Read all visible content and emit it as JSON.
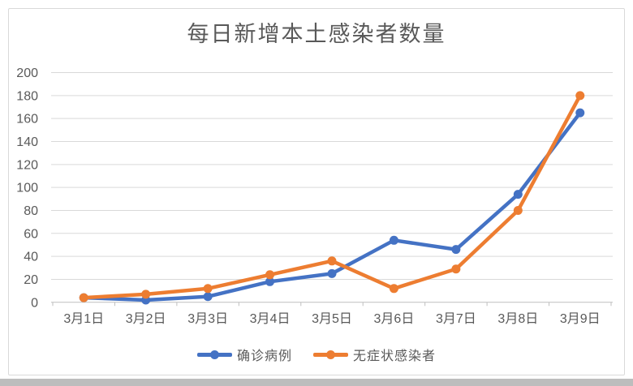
{
  "chart_data": {
    "type": "line",
    "title": "每日新增本土感染者数量",
    "categories": [
      "3月1日",
      "3月2日",
      "3月3日",
      "3月4日",
      "3月5日",
      "3月6日",
      "3月7日",
      "3月8日",
      "3月9日"
    ],
    "series": [
      {
        "name": "确诊病例",
        "color": "#4472C4",
        "values": [
          4,
          2,
          5,
          18,
          25,
          54,
          46,
          94,
          165
        ]
      },
      {
        "name": "无症状感染者",
        "color": "#ED7D31",
        "values": [
          4,
          7,
          12,
          24,
          36,
          12,
          29,
          80,
          180
        ]
      }
    ],
    "ylim": [
      0,
      200
    ],
    "ytick_step": 20,
    "xlabel": "",
    "ylabel": "",
    "grid": true,
    "legend_position": "bottom",
    "marker": "circle"
  },
  "colors": {
    "grid_line": "#d9d9d9",
    "axis_line": "#bfbfbf",
    "label_text": "#595959",
    "card_border": "#d9d9d9",
    "bottom_strip": "#bdbdbd"
  }
}
